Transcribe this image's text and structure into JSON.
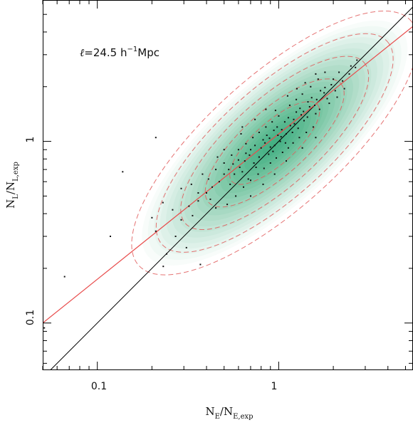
{
  "chart_data": {
    "type": "scatter",
    "title": "",
    "annotation": {
      "ell": "ℓ",
      "eq": "=24.5 h",
      "sup": "−1",
      "unit": "Mpc"
    },
    "xlabel": {
      "main": "N",
      "sub1": "E",
      "mid": "/N",
      "sub2": "E,exp"
    },
    "ylabel": {
      "main": "N",
      "sub1": "L",
      "mid": "/N",
      "sub2": "L,exp"
    },
    "x_scale": "log",
    "y_scale": "log",
    "xlim": [
      0.05,
      5.5
    ],
    "ylim": [
      0.055,
      6.0
    ],
    "x_tick_labels": [
      {
        "value": 0.1,
        "label": "0.1"
      },
      {
        "value": 1,
        "label": "1"
      }
    ],
    "y_tick_labels": [
      {
        "value": 0.1,
        "label": "0.1"
      },
      {
        "value": 1,
        "label": "1"
      }
    ],
    "grid": false,
    "colors": {
      "density": "#1fa46a",
      "contour": "#e05a5a",
      "fit_line": "#e84b4b",
      "identity_line": "#000000",
      "points": "#111111"
    },
    "identity_line": {
      "x": [
        0.05,
        5.5
      ],
      "y": [
        0.05,
        5.5
      ]
    },
    "fit_line": {
      "x": [
        0.05,
        5.5
      ],
      "y": [
        0.1,
        4.3
      ]
    },
    "density": {
      "center": [
        0.95,
        0.98
      ],
      "log_sigma_major": 0.36,
      "log_sigma_minor": 0.13,
      "angle_deg": 42
    },
    "contour_levels_sigma": [
      0.55,
      0.85,
      1.15,
      1.45,
      1.75
    ],
    "points": [
      [
        0.051,
        0.094
      ],
      [
        0.066,
        0.18
      ],
      [
        0.118,
        0.3
      ],
      [
        0.138,
        0.68
      ],
      [
        0.21,
        1.05
      ],
      [
        0.37,
        0.21
      ],
      [
        0.231,
        0.205
      ],
      [
        0.241,
        0.24
      ],
      [
        0.31,
        0.26
      ],
      [
        0.21,
        0.32
      ],
      [
        0.26,
        0.42
      ],
      [
        0.29,
        0.37
      ],
      [
        0.335,
        0.39
      ],
      [
        0.36,
        0.47
      ],
      [
        0.4,
        0.52
      ],
      [
        0.43,
        0.56
      ],
      [
        0.47,
        0.6
      ],
      [
        0.45,
        0.43
      ],
      [
        0.5,
        0.66
      ],
      [
        0.53,
        0.7
      ],
      [
        0.56,
        0.75
      ],
      [
        0.6,
        0.79
      ],
      [
        0.63,
        0.68
      ],
      [
        0.66,
        0.86
      ],
      [
        0.7,
        0.9
      ],
      [
        0.74,
        0.95
      ],
      [
        0.78,
        0.82
      ],
      [
        0.82,
        1.02
      ],
      [
        0.86,
        1.08
      ],
      [
        0.9,
        0.93
      ],
      [
        0.94,
        1.15
      ],
      [
        0.98,
        1.2
      ],
      [
        1.03,
        1.06
      ],
      [
        1.08,
        1.28
      ],
      [
        1.13,
        1.35
      ],
      [
        1.19,
        1.12
      ],
      [
        1.25,
        1.45
      ],
      [
        1.31,
        1.52
      ],
      [
        1.38,
        1.3
      ],
      [
        1.45,
        1.65
      ],
      [
        1.52,
        1.74
      ],
      [
        1.6,
        1.42
      ],
      [
        1.7,
        1.9
      ],
      [
        1.8,
        1.98
      ],
      [
        1.9,
        1.62
      ],
      [
        2.0,
        2.2
      ],
      [
        2.15,
        2.4
      ],
      [
        2.3,
        1.95
      ],
      [
        2.5,
        2.6
      ],
      [
        2.7,
        2.8
      ],
      [
        0.52,
        0.45
      ],
      [
        0.58,
        0.5
      ],
      [
        0.64,
        0.56
      ],
      [
        0.7,
        0.61
      ],
      [
        0.77,
        0.66
      ],
      [
        0.83,
        0.71
      ],
      [
        0.9,
        0.76
      ],
      [
        0.97,
        0.81
      ],
      [
        1.05,
        0.87
      ],
      [
        1.13,
        0.92
      ],
      [
        0.45,
        0.7
      ],
      [
        0.5,
        0.76
      ],
      [
        0.55,
        0.84
      ],
      [
        0.6,
        0.9
      ],
      [
        0.66,
        0.97
      ],
      [
        0.72,
        1.05
      ],
      [
        0.78,
        1.12
      ],
      [
        0.85,
        1.2
      ],
      [
        0.92,
        1.28
      ],
      [
        1.0,
        1.38
      ],
      [
        1.15,
        1.58
      ],
      [
        1.25,
        1.7
      ],
      [
        1.35,
        1.82
      ],
      [
        1.5,
        2.0
      ],
      [
        1.65,
        2.2
      ],
      [
        1.8,
        2.4
      ],
      [
        1.2,
        0.98
      ],
      [
        1.3,
        1.05
      ],
      [
        1.42,
        1.12
      ],
      [
        1.55,
        1.2
      ],
      [
        0.38,
        0.66
      ],
      [
        0.42,
        0.48
      ],
      [
        0.33,
        0.58
      ],
      [
        0.29,
        0.55
      ],
      [
        0.46,
        0.82
      ],
      [
        0.5,
        0.9
      ],
      [
        0.62,
        1.1
      ],
      [
        0.68,
        0.62
      ],
      [
        0.75,
        0.72
      ],
      [
        0.88,
        0.85
      ],
      [
        0.95,
        0.95
      ],
      [
        1.02,
        1.0
      ],
      [
        1.1,
        1.1
      ],
      [
        1.22,
        1.25
      ],
      [
        1.33,
        1.4
      ],
      [
        1.48,
        1.55
      ],
      [
        1.62,
        1.7
      ],
      [
        1.78,
        1.85
      ],
      [
        1.95,
        2.05
      ],
      [
        2.1,
        1.75
      ],
      [
        2.25,
        2.15
      ],
      [
        2.45,
        2.35
      ],
      [
        2.65,
        2.55
      ],
      [
        0.2,
        0.38
      ],
      [
        0.23,
        0.46
      ],
      [
        0.27,
        0.3
      ],
      [
        0.32,
        0.44
      ],
      [
        0.36,
        0.52
      ],
      [
        0.41,
        0.62
      ],
      [
        0.54,
        0.58
      ],
      [
        0.57,
        0.66
      ],
      [
        0.61,
        0.72
      ],
      [
        0.65,
        0.78
      ],
      [
        0.69,
        0.84
      ],
      [
        0.73,
        0.76
      ],
      [
        0.8,
        0.92
      ],
      [
        0.84,
        0.98
      ],
      [
        0.89,
        1.04
      ],
      [
        0.93,
        0.88
      ],
      [
        0.99,
        1.08
      ],
      [
        1.04,
        1.16
      ],
      [
        1.09,
        0.98
      ],
      [
        1.16,
        1.22
      ],
      [
        1.21,
        1.32
      ],
      [
        1.28,
        1.18
      ],
      [
        1.37,
        1.46
      ],
      [
        1.44,
        1.36
      ],
      [
        1.58,
        1.58
      ],
      [
        1.68,
        1.5
      ],
      [
        1.85,
        1.72
      ],
      [
        2.05,
        1.9
      ],
      [
        0.85,
        1.5
      ],
      [
        0.96,
        1.48
      ],
      [
        1.12,
        1.78
      ],
      [
        1.26,
        1.95
      ],
      [
        1.4,
        2.1
      ],
      [
        1.6,
        2.35
      ],
      [
        0.74,
        1.32
      ],
      [
        0.63,
        1.2
      ],
      [
        0.7,
        0.5
      ],
      [
        0.82,
        0.58
      ],
      [
        0.95,
        0.66
      ],
      [
        1.1,
        0.78
      ],
      [
        1.35,
        0.92
      ],
      [
        1.6,
        1.05
      ]
    ]
  }
}
